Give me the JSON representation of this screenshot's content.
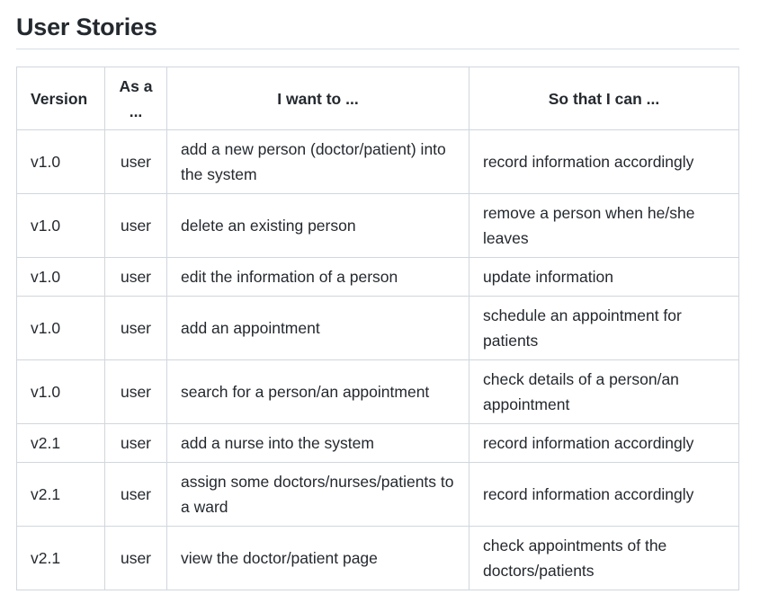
{
  "heading": "User Stories",
  "table": {
    "headers": {
      "version": "Version",
      "as": "As a ...",
      "want": "I want to ...",
      "so": "So that I can ..."
    },
    "rows": [
      {
        "version": "v1.0",
        "as": "user",
        "want": "add a new person (doctor/patient) into the system",
        "so": "record information accordingly"
      },
      {
        "version": "v1.0",
        "as": "user",
        "want": "delete an existing person",
        "so": "remove a person when he/she leaves"
      },
      {
        "version": "v1.0",
        "as": "user",
        "want": "edit the information of a person",
        "so": "update information"
      },
      {
        "version": "v1.0",
        "as": "user",
        "want": "add an appointment",
        "so": "schedule an appointment for patients"
      },
      {
        "version": "v1.0",
        "as": "user",
        "want": "search for a person/an appointment",
        "so": "check details of a person/an appointment"
      },
      {
        "version": "v2.1",
        "as": "user",
        "want": "add a nurse into the system",
        "so": "record information accordingly"
      },
      {
        "version": "v2.1",
        "as": "user",
        "want": "assign some doctors/nurses/patients to a ward",
        "so": "record information accordingly"
      },
      {
        "version": "v2.1",
        "as": "user",
        "want": "view the doctor/patient page",
        "so": "check appointments of the doctors/patients"
      }
    ]
  }
}
